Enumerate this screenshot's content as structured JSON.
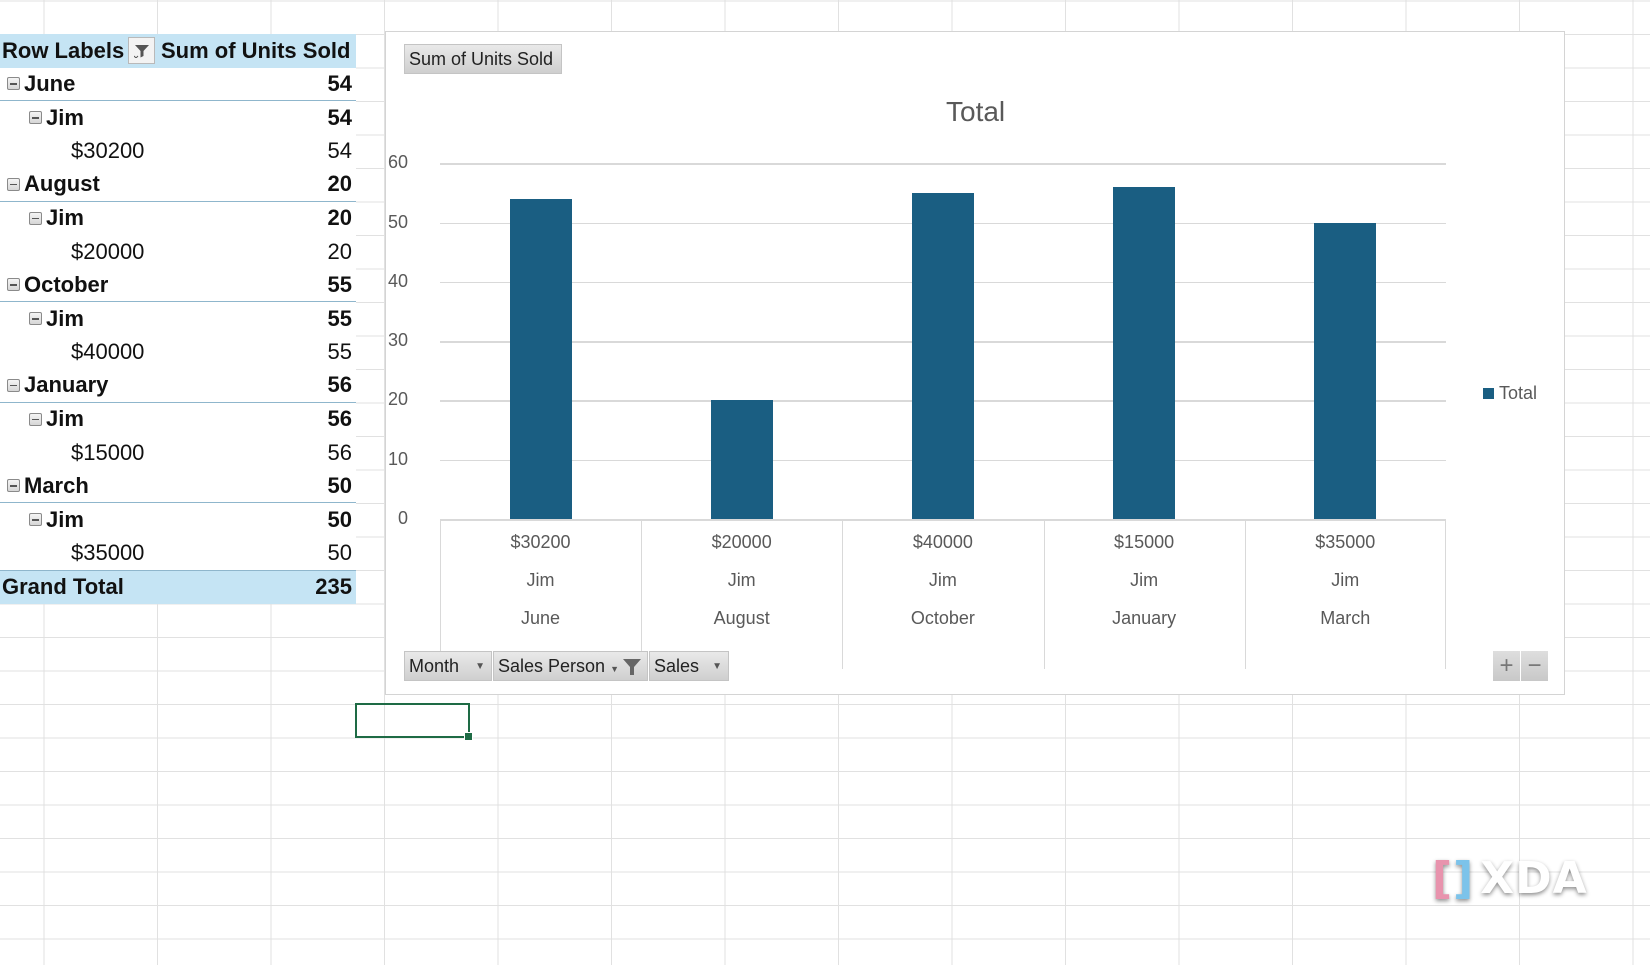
{
  "pivot": {
    "header": {
      "row_labels": "Row Labels",
      "value_header": "Sum of Units Sold"
    },
    "rows": [
      {
        "level": 0,
        "label": "June",
        "value": "54"
      },
      {
        "level": 1,
        "label": "Jim",
        "value": "54"
      },
      {
        "level": 2,
        "label": "$30200",
        "value": "54"
      },
      {
        "level": 0,
        "label": "August",
        "value": "20"
      },
      {
        "level": 1,
        "label": "Jim",
        "value": "20"
      },
      {
        "level": 2,
        "label": "$20000",
        "value": "20"
      },
      {
        "level": 0,
        "label": "October",
        "value": "55"
      },
      {
        "level": 1,
        "label": "Jim",
        "value": "55"
      },
      {
        "level": 2,
        "label": "$40000",
        "value": "55"
      },
      {
        "level": 0,
        "label": "January",
        "value": "56"
      },
      {
        "level": 1,
        "label": "Jim",
        "value": "56"
      },
      {
        "level": 2,
        "label": "$15000",
        "value": "56"
      },
      {
        "level": 0,
        "label": "March",
        "value": "50"
      },
      {
        "level": 1,
        "label": "Jim",
        "value": "50"
      },
      {
        "level": 2,
        "label": "$35000",
        "value": "50"
      }
    ],
    "grand_total": {
      "label": "Grand Total",
      "value": "235"
    }
  },
  "chart": {
    "value_field_button": "Sum of Units Sold",
    "axis_field_buttons": [
      "Month",
      "Sales Person",
      "Sales"
    ],
    "zoom_in": "+",
    "zoom_out": "−"
  },
  "chart_data": {
    "type": "bar",
    "title": "Total",
    "categories": [
      [
        "$30200",
        "Jim",
        "June"
      ],
      [
        "$20000",
        "Jim",
        "August"
      ],
      [
        "$40000",
        "Jim",
        "October"
      ],
      [
        "$15000",
        "Jim",
        "January"
      ],
      [
        "$35000",
        "Jim",
        "March"
      ]
    ],
    "series": [
      {
        "name": "Total",
        "values": [
          54,
          20,
          55,
          56,
          50
        ],
        "color": "#1a5e82"
      }
    ],
    "xlabel": "",
    "ylabel": "",
    "ylim": [
      0,
      60
    ],
    "yticks": [
      "0",
      "10",
      "20",
      "30",
      "40",
      "50",
      "60"
    ],
    "grid": true,
    "legend_position": "right"
  },
  "watermark": {
    "text": "XDA"
  }
}
